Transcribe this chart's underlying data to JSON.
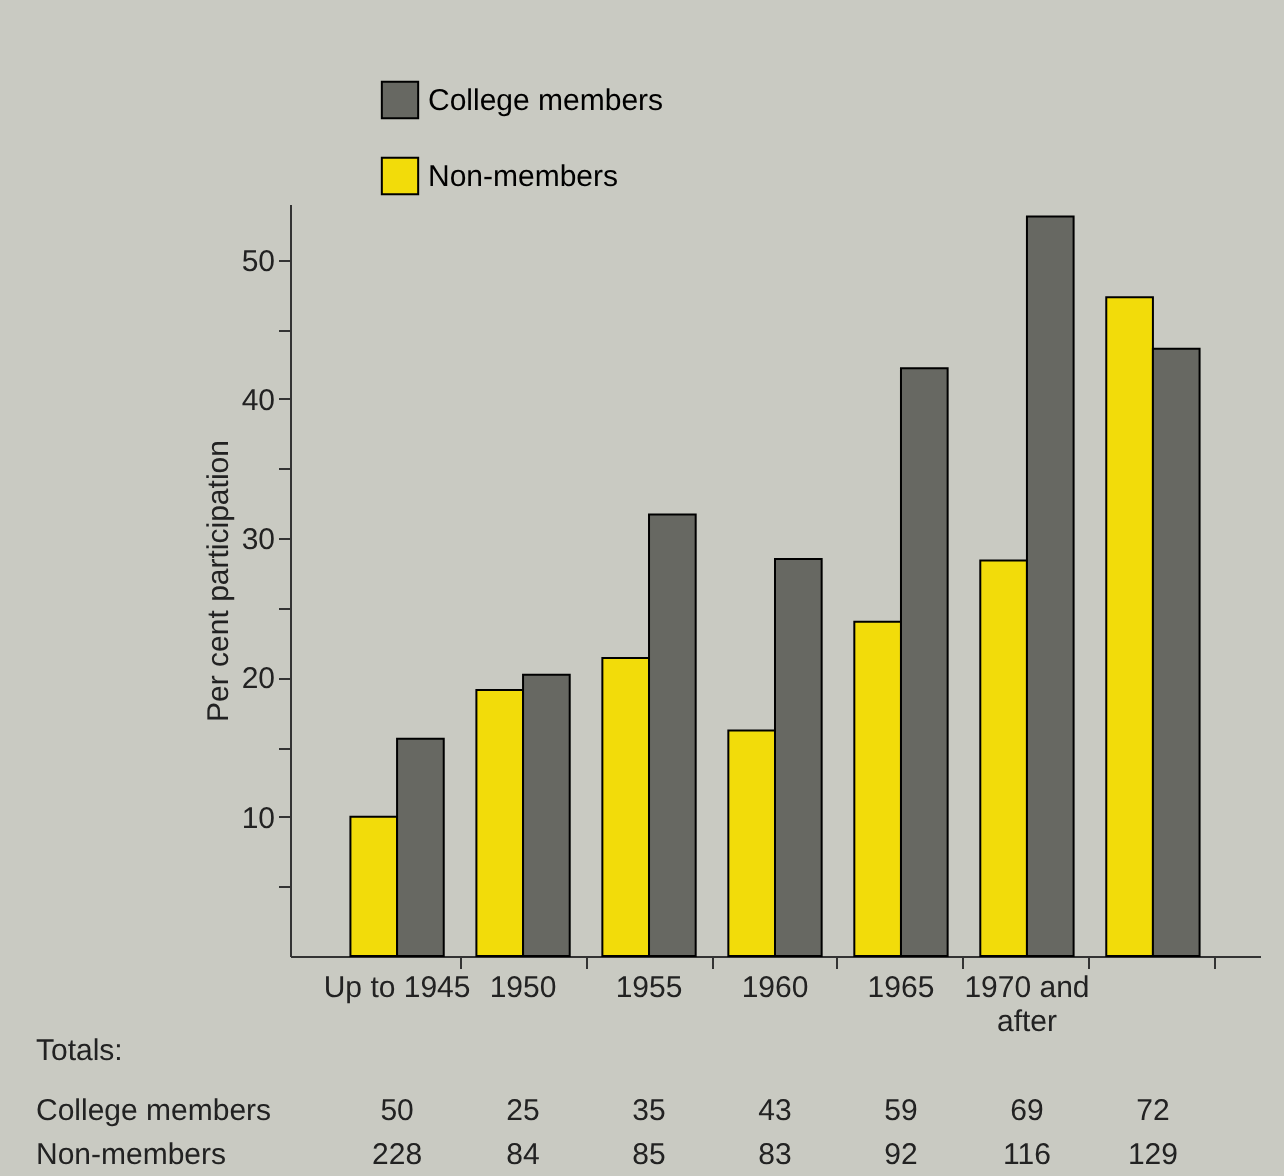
{
  "chart_data": {
    "type": "bar",
    "ylabel": "Per cent participation",
    "categories": [
      "Up to 1945",
      "1950",
      "1955",
      "1960",
      "1965",
      "1970 and after",
      null
    ],
    "series": [
      {
        "name": "Non-members",
        "color": "#f2dc0a",
        "values": [
          10,
          19.1,
          21.4,
          16.2,
          24,
          28.4,
          47.3
        ]
      },
      {
        "name": "College members",
        "color": "#676862",
        "values": [
          15.6,
          20.2,
          31.7,
          28.5,
          42.2,
          53.1,
          43.6
        ]
      }
    ],
    "ylim": [
      0,
      54
    ],
    "yticks": [
      {
        "value": 5,
        "label": null
      },
      10,
      {
        "value": 15,
        "label": null
      },
      20,
      {
        "value": 25,
        "label": null
      },
      30,
      {
        "value": 35,
        "label": null
      },
      40,
      {
        "value": 45,
        "label": null
      },
      50
    ],
    "grid": false,
    "legend": "top left",
    "annotations": [
      "Totals:",
      "College members",
      "50",
      "25",
      "35",
      "43",
      "59",
      "69",
      "72",
      "Non-members",
      "228",
      "84",
      "85",
      "83",
      "92",
      "116",
      "129"
    ]
  }
}
